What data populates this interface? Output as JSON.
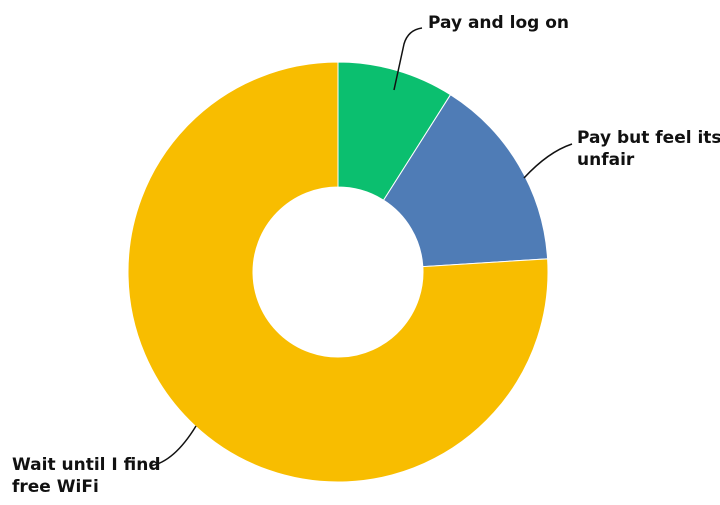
{
  "chart_data": {
    "type": "pie",
    "donut": true,
    "start_angle_deg": 0,
    "slices": [
      {
        "label": "Pay and log on",
        "label_lines": [
          "Pay and log on"
        ],
        "value": 9,
        "color": "#0bbf6f"
      },
      {
        "label": "Pay but feel its unfair",
        "label_lines": [
          "Pay but feel its",
          "unfair"
        ],
        "value": 15,
        "color": "#4f7cb6"
      },
      {
        "label": "Wait until I find free WiFi",
        "label_lines": [
          "Wait until I find",
          "free WiFi"
        ],
        "value": 76,
        "color": "#f8bd00"
      }
    ]
  }
}
